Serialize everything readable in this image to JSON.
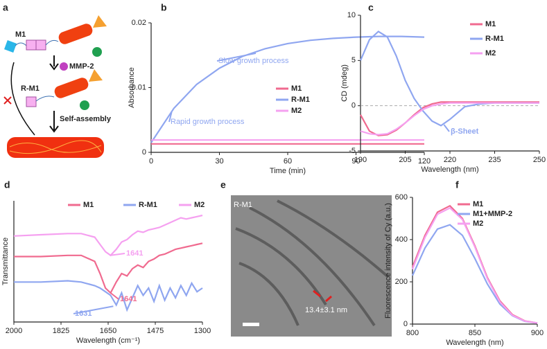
{
  "panels": {
    "a": {
      "letter": "a",
      "labels": [
        "M1",
        "MMP-2",
        "R-M1",
        "Self-assembly"
      ]
    },
    "e": {
      "letter": "e",
      "label": "R-M1",
      "scale": "13.4±3.1 nm"
    }
  },
  "chart_data": [
    {
      "type": "line",
      "letter": "b",
      "xlabel": "Time (min)",
      "ylabel": "Absorbance",
      "xlim": [
        0,
        120
      ],
      "xticks": [
        0,
        30,
        60,
        90,
        120
      ],
      "ylim": [
        0,
        0.02
      ],
      "yticks": [
        0,
        0.01,
        0.02
      ],
      "x": [
        0,
        10,
        20,
        30,
        40,
        50,
        60,
        70,
        80,
        90,
        100,
        110,
        120
      ],
      "series": [
        {
          "name": "M1",
          "color": "#f06a8f",
          "values": [
            0.0013,
            0.0013,
            0.0013,
            0.0013,
            0.0013,
            0.0013,
            0.0013,
            0.0013,
            0.0013,
            0.0013,
            0.0013,
            0.0013,
            0.0013
          ]
        },
        {
          "name": "R-M1",
          "color": "#8fa6f0",
          "values": [
            0.0015,
            0.0068,
            0.0105,
            0.013,
            0.0148,
            0.016,
            0.0168,
            0.0173,
            0.0176,
            0.0178,
            0.0179,
            0.0179,
            0.0178
          ]
        },
        {
          "name": "M2",
          "color": "#f5a0f0",
          "values": [
            0.0019,
            0.0019,
            0.0019,
            0.0019,
            0.0019,
            0.0019,
            0.0019,
            0.0019,
            0.0019,
            0.0019,
            0.0019,
            0.0019,
            0.0019
          ]
        }
      ],
      "annotations": [
        {
          "text": "Slow growth process",
          "color": "#8fa6f0"
        },
        {
          "text": "Rapid growth process",
          "color": "#8fa6f0"
        }
      ]
    },
    {
      "type": "line",
      "letter": "c",
      "xlabel": "Wavelength (nm)",
      "ylabel": "CD (mdeg)",
      "xlim": [
        190,
        250
      ],
      "xticks": [
        190,
        205,
        220,
        235,
        250
      ],
      "ylim": [
        -5,
        10
      ],
      "yticks": [
        -5,
        0,
        5,
        10
      ],
      "zero_line": true,
      "x": [
        190,
        193,
        196,
        199,
        202,
        205,
        208,
        211,
        214,
        217,
        220,
        225,
        230,
        235,
        240,
        245,
        250
      ],
      "series": [
        {
          "name": "M1",
          "color": "#f06a8f",
          "values": [
            -1,
            -2.8,
            -3.3,
            -3.2,
            -2.7,
            -1.9,
            -1,
            -0.2,
            0.2,
            0.4,
            0.4,
            0.4,
            0.4,
            0.4,
            0.4,
            0.4,
            0.4
          ]
        },
        {
          "name": "R-M1",
          "color": "#8fa6f0",
          "values": [
            5,
            7.3,
            8.2,
            7.6,
            5.5,
            2.8,
            0.8,
            -0.6,
            -1.7,
            -2.2,
            -1.5,
            -0.1,
            0.2,
            0.3,
            0.3,
            0.3,
            0.3
          ]
        },
        {
          "name": "M2",
          "color": "#f5a0f0",
          "values": [
            -2.8,
            -3.1,
            -3.2,
            -3.1,
            -2.6,
            -1.9,
            -1.1,
            -0.4,
            0,
            0.2,
            0.3,
            0.3,
            0.3,
            0.3,
            0.3,
            0.3,
            0.3
          ]
        }
      ],
      "annotations": [
        {
          "text": "β-Sheet",
          "color": "#8fa6f0"
        }
      ]
    },
    {
      "type": "line",
      "letter": "d",
      "xlabel": "Wavelength (cm⁻¹)",
      "ylabel": "Transmittance",
      "xlim": [
        2000,
        1300
      ],
      "xticks": [
        2000,
        1825,
        1650,
        1475,
        1300
      ],
      "ylim": [
        0,
        100
      ],
      "x": [
        2000,
        1900,
        1800,
        1750,
        1700,
        1680,
        1660,
        1641,
        1620,
        1600,
        1580,
        1560,
        1540,
        1520,
        1500,
        1480,
        1460,
        1440,
        1420,
        1400,
        1380,
        1360,
        1340,
        1320,
        1300
      ],
      "series": [
        {
          "name": "M1",
          "color": "#f06a8f",
          "values": [
            54,
            54,
            55,
            55,
            50,
            40,
            28,
            24,
            33,
            40,
            38,
            44,
            47,
            45,
            50,
            52,
            55,
            56,
            58,
            60,
            61,
            62,
            63,
            64,
            65
          ]
        },
        {
          "name": "R-M1",
          "color": "#8fa6f0",
          "values": [
            33,
            33,
            34,
            33,
            30,
            28,
            25,
            22,
            14,
            24,
            10,
            20,
            30,
            22,
            28,
            17,
            30,
            18,
            28,
            20,
            30,
            22,
            32,
            25,
            28
          ]
        },
        {
          "name": "M2",
          "color": "#f5a0f0",
          "values": [
            71,
            72,
            73,
            73,
            70,
            64,
            58,
            55,
            60,
            66,
            68,
            72,
            75,
            74,
            76,
            77,
            78,
            80,
            82,
            84,
            86,
            85,
            86,
            87,
            88
          ]
        }
      ],
      "annotations": [
        {
          "text": "1641",
          "color": "#f5a0f0"
        },
        {
          "text": "1641",
          "color": "#f06a8f"
        },
        {
          "text": "1631",
          "color": "#8fa6f0"
        }
      ]
    },
    {
      "type": "line",
      "letter": "f",
      "xlabel": "Wavelength (nm)",
      "ylabel": "Fluorescence intensity of Cy (a.u.)",
      "xlim": [
        800,
        900
      ],
      "xticks": [
        800,
        850,
        900
      ],
      "ylim": [
        0,
        600
      ],
      "yticks": [
        0,
        200,
        400,
        600
      ],
      "x": [
        800,
        810,
        820,
        830,
        840,
        850,
        860,
        870,
        880,
        890,
        900
      ],
      "series": [
        {
          "name": "M1",
          "color": "#f06a8f",
          "values": [
            270,
            420,
            530,
            560,
            500,
            370,
            220,
            110,
            45,
            15,
            5
          ]
        },
        {
          "name": "M1+MMP-2",
          "color": "#8fa6f0",
          "values": [
            230,
            360,
            450,
            470,
            420,
            310,
            190,
            95,
            40,
            13,
            5
          ]
        },
        {
          "name": "M2",
          "color": "#f5a0f0",
          "values": [
            260,
            410,
            520,
            550,
            495,
            365,
            215,
            105,
            42,
            14,
            5
          ]
        }
      ]
    }
  ]
}
